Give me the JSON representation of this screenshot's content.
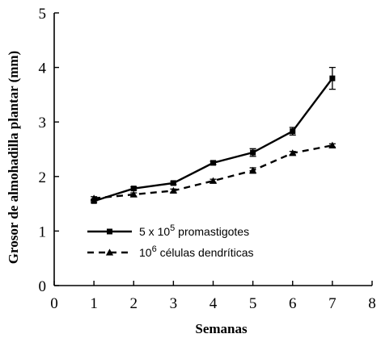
{
  "chart_data": {
    "type": "line",
    "xlabel": "Semanas",
    "ylabel": "Grosor de almohadilla plantar (mm)",
    "xlim": [
      0,
      8
    ],
    "ylim": [
      0,
      5
    ],
    "x_ticks": [
      "0",
      "1",
      "2",
      "3",
      "4",
      "5",
      "6",
      "7",
      "8"
    ],
    "y_ticks": [
      "0",
      "1",
      "2",
      "3",
      "4",
      "5"
    ],
    "grid": false,
    "legend_position": "lower-left",
    "series": [
      {
        "name": "5 x 10^5 promastigotes",
        "legend": {
          "pre": "5 x 10",
          "sup": "5",
          "post": " promastigotes"
        },
        "line_style": "solid",
        "marker": "square",
        "color": "#000000",
        "x": [
          1,
          2,
          3,
          4,
          5,
          6,
          7
        ],
        "y": [
          1.55,
          1.78,
          1.88,
          2.25,
          2.44,
          2.83,
          3.8
        ],
        "error": [
          0.03,
          0.03,
          0.03,
          0.03,
          0.07,
          0.07,
          0.2
        ]
      },
      {
        "name": "10^6 células dendríticas",
        "legend": {
          "pre": "10",
          "sup": "6",
          "post": " células dendríticas"
        },
        "line_style": "dashed",
        "marker": "triangle",
        "color": "#000000",
        "x": [
          1,
          2,
          3,
          4,
          5,
          6,
          7
        ],
        "y": [
          1.6,
          1.67,
          1.74,
          1.92,
          2.11,
          2.43,
          2.57
        ],
        "error": [
          0.03,
          0.03,
          0.03,
          0.03,
          0.05,
          0.03,
          0.03
        ]
      }
    ]
  }
}
